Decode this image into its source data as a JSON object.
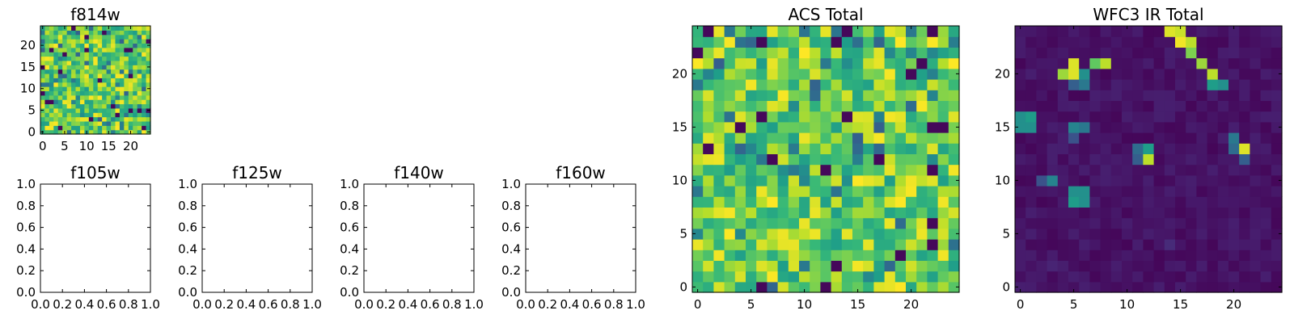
{
  "chart_data": [
    {
      "type": "heatmap",
      "title": "f814w",
      "xlabel": "",
      "ylabel": "",
      "xlim": [
        -0.5,
        24.5
      ],
      "ylim": [
        -0.5,
        24.5
      ],
      "xticks": [
        0,
        5,
        10,
        15,
        20
      ],
      "yticks": [
        0,
        5,
        10,
        15,
        20
      ],
      "colormap": "viridis",
      "pattern": "noise",
      "grid": false
    },
    {
      "type": "heatmap",
      "title": "f105w",
      "xlabel": "",
      "ylabel": "",
      "xlim": [
        0.0,
        1.0
      ],
      "ylim": [
        0.0,
        1.0
      ],
      "xticks": [
        0.0,
        0.2,
        0.4,
        0.6,
        0.8,
        1.0
      ],
      "yticks": [
        0.0,
        0.2,
        0.4,
        0.6,
        0.8,
        1.0
      ],
      "pattern": "empty",
      "grid": false
    },
    {
      "type": "heatmap",
      "title": "f125w",
      "xlabel": "",
      "ylabel": "",
      "xlim": [
        0.0,
        1.0
      ],
      "ylim": [
        0.0,
        1.0
      ],
      "xticks": [
        0.0,
        0.2,
        0.4,
        0.6,
        0.8,
        1.0
      ],
      "yticks": [
        0.0,
        0.2,
        0.4,
        0.6,
        0.8,
        1.0
      ],
      "pattern": "empty",
      "grid": false
    },
    {
      "type": "heatmap",
      "title": "f140w",
      "xlabel": "",
      "ylabel": "",
      "xlim": [
        0.0,
        1.0
      ],
      "ylim": [
        0.0,
        1.0
      ],
      "xticks": [
        0.0,
        0.2,
        0.4,
        0.6,
        0.8,
        1.0
      ],
      "yticks": [
        0.0,
        0.2,
        0.4,
        0.6,
        0.8,
        1.0
      ],
      "pattern": "empty",
      "grid": false
    },
    {
      "type": "heatmap",
      "title": "f160w",
      "xlabel": "",
      "ylabel": "",
      "xlim": [
        0.0,
        1.0
      ],
      "ylim": [
        0.0,
        1.0
      ],
      "xticks": [
        0.0,
        0.2,
        0.4,
        0.6,
        0.8,
        1.0
      ],
      "yticks": [
        0.0,
        0.2,
        0.4,
        0.6,
        0.8,
        1.0
      ],
      "pattern": "empty",
      "grid": false
    },
    {
      "type": "heatmap",
      "title": "ACS Total",
      "xlabel": "",
      "ylabel": "",
      "xlim": [
        -0.5,
        24.5
      ],
      "ylim": [
        -0.5,
        24.5
      ],
      "xticks": [
        0,
        5,
        10,
        15,
        20
      ],
      "yticks": [
        0,
        5,
        10,
        15,
        20
      ],
      "colormap": "viridis",
      "pattern": "noise",
      "grid": false
    },
    {
      "type": "heatmap",
      "title": "WFC3 IR Total",
      "xlabel": "",
      "ylabel": "",
      "xlim": [
        -0.5,
        24.5
      ],
      "ylim": [
        -0.5,
        24.5
      ],
      "xticks": [
        0,
        5,
        10,
        15,
        20
      ],
      "yticks": [
        0,
        5,
        10,
        15,
        20
      ],
      "colormap": "viridis",
      "pattern": "sparse",
      "background_level": 0.05,
      "bright_pixels": [
        {
          "x": 14,
          "y": 24,
          "v": 0.95
        },
        {
          "x": 15,
          "y": 24,
          "v": 0.92
        },
        {
          "x": 15,
          "y": 23,
          "v": 0.98
        },
        {
          "x": 16,
          "y": 23,
          "v": 0.9
        },
        {
          "x": 16,
          "y": 22,
          "v": 0.8
        },
        {
          "x": 17,
          "y": 21,
          "v": 0.85
        },
        {
          "x": 18,
          "y": 20,
          "v": 0.9
        },
        {
          "x": 18,
          "y": 19,
          "v": 0.55
        },
        {
          "x": 19,
          "y": 19,
          "v": 0.5
        },
        {
          "x": 4,
          "y": 20,
          "v": 0.85
        },
        {
          "x": 5,
          "y": 21,
          "v": 0.95
        },
        {
          "x": 5,
          "y": 20,
          "v": 0.95
        },
        {
          "x": 6,
          "y": 20,
          "v": 0.5
        },
        {
          "x": 7,
          "y": 21,
          "v": 0.75
        },
        {
          "x": 8,
          "y": 21,
          "v": 0.9
        },
        {
          "x": 5,
          "y": 19,
          "v": 0.3
        },
        {
          "x": 6,
          "y": 19,
          "v": 0.4
        },
        {
          "x": 0,
          "y": 16,
          "v": 0.5
        },
        {
          "x": 1,
          "y": 16,
          "v": 0.55
        },
        {
          "x": 0,
          "y": 15,
          "v": 0.5
        },
        {
          "x": 1,
          "y": 15,
          "v": 0.5
        },
        {
          "x": 5,
          "y": 15,
          "v": 0.45
        },
        {
          "x": 6,
          "y": 15,
          "v": 0.4
        },
        {
          "x": 5,
          "y": 14,
          "v": 0.25
        },
        {
          "x": 11,
          "y": 13,
          "v": 0.35
        },
        {
          "x": 12,
          "y": 13,
          "v": 0.55
        },
        {
          "x": 11,
          "y": 12,
          "v": 0.3
        },
        {
          "x": 12,
          "y": 12,
          "v": 0.9
        },
        {
          "x": 20,
          "y": 14,
          "v": 0.4
        },
        {
          "x": 20,
          "y": 13,
          "v": 0.35
        },
        {
          "x": 21,
          "y": 13,
          "v": 0.95
        },
        {
          "x": 21,
          "y": 12,
          "v": 0.3
        },
        {
          "x": 2,
          "y": 10,
          "v": 0.25
        },
        {
          "x": 3,
          "y": 10,
          "v": 0.45
        },
        {
          "x": 5,
          "y": 9,
          "v": 0.5
        },
        {
          "x": 6,
          "y": 9,
          "v": 0.5
        },
        {
          "x": 5,
          "y": 8,
          "v": 0.55
        },
        {
          "x": 6,
          "y": 8,
          "v": 0.5
        },
        {
          "x": 14,
          "y": 4,
          "v": 0.12
        },
        {
          "x": 3,
          "y": 2,
          "v": 0.1
        }
      ],
      "grid": false
    }
  ]
}
